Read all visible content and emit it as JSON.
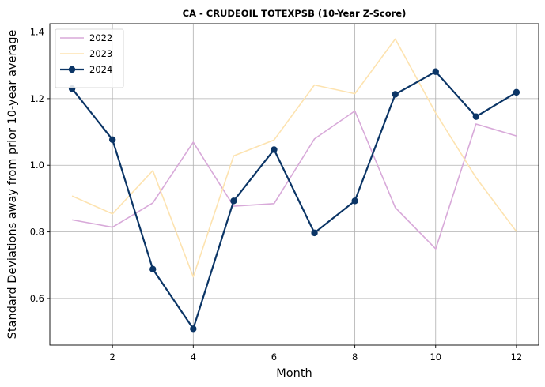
{
  "chart_data": {
    "type": "line",
    "title": "CA - CRUDEOIL TOTEXPSB (10-Year Z-Score)",
    "xlabel": "Month",
    "ylabel": "Standard Deviations away from prior 10-year average",
    "xlim": [
      0.45,
      12.55
    ],
    "ylim": [
      0.46,
      1.425
    ],
    "xticks": [
      2,
      4,
      6,
      8,
      10,
      12
    ],
    "yticks": [
      0.6,
      0.8,
      1.0,
      1.2,
      1.4
    ],
    "ytick_labels": [
      "0.6",
      "0.8",
      "1.0",
      "1.2",
      "1.4"
    ],
    "grid": true,
    "legend": "upper-left",
    "x": [
      1,
      2,
      3,
      4,
      5,
      6,
      7,
      8,
      9,
      10,
      11,
      12
    ],
    "series": [
      {
        "name": "2022",
        "color": "#d8a9d9",
        "marker": false,
        "values": [
          0.836,
          0.814,
          0.887,
          1.069,
          0.877,
          0.885,
          1.079,
          1.163,
          0.873,
          0.749,
          1.124,
          1.088
        ]
      },
      {
        "name": "2023",
        "color": "#fde3b0",
        "marker": false,
        "values": [
          0.908,
          0.854,
          0.984,
          0.665,
          1.028,
          1.076,
          1.241,
          1.215,
          1.379,
          1.157,
          0.963,
          0.801
        ]
      },
      {
        "name": "2024",
        "color": "#0b3566",
        "marker": true,
        "values": [
          1.23,
          1.077,
          0.688,
          0.509,
          0.893,
          1.047,
          0.797,
          0.893,
          1.213,
          1.281,
          1.146,
          1.219
        ]
      }
    ]
  }
}
